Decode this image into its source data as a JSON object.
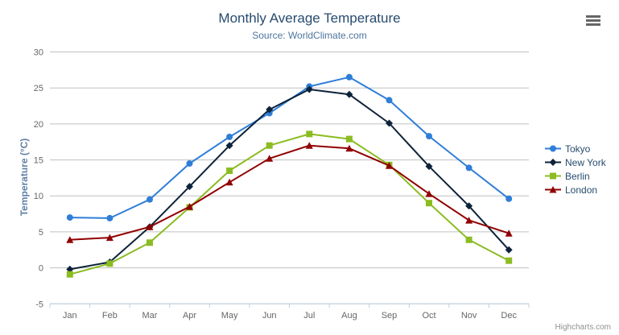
{
  "chart_data": {
    "type": "line",
    "title": "Monthly Average Temperature",
    "subtitle": "Source: WorldClimate.com",
    "categories": [
      "Jan",
      "Feb",
      "Mar",
      "Apr",
      "May",
      "Jun",
      "Jul",
      "Aug",
      "Sep",
      "Oct",
      "Nov",
      "Dec"
    ],
    "series": [
      {
        "name": "Tokyo",
        "color": "#2f7ed8",
        "marker": "circle",
        "values": [
          7.0,
          6.9,
          9.5,
          14.5,
          18.2,
          21.5,
          25.2,
          26.5,
          23.3,
          18.3,
          13.9,
          9.6
        ]
      },
      {
        "name": "New York",
        "color": "#0d233a",
        "marker": "diamond",
        "values": [
          -0.2,
          0.8,
          5.7,
          11.3,
          17.0,
          22.0,
          24.8,
          24.1,
          20.1,
          14.1,
          8.6,
          2.5
        ]
      },
      {
        "name": "Berlin",
        "color": "#8bbc21",
        "marker": "square",
        "values": [
          -0.9,
          0.6,
          3.5,
          8.4,
          13.5,
          17.0,
          18.6,
          17.9,
          14.3,
          9.0,
          3.9,
          1.0
        ]
      },
      {
        "name": "London",
        "color": "#910000",
        "marker": "triangle",
        "values": [
          3.9,
          4.2,
          5.7,
          8.5,
          11.9,
          15.2,
          17.0,
          16.6,
          14.2,
          10.3,
          6.6,
          4.8
        ]
      }
    ],
    "xlabel": "",
    "ylabel": "Temperature (°C)",
    "ylim": [
      -5,
      30
    ],
    "ytick_interval": 5,
    "grid": "horizontal",
    "legend_position": "right"
  },
  "colors": {
    "title": "#274b6d",
    "subtitle": "#4d759e",
    "y_axis_title": "#5f7fa6",
    "axis_labels": "#666666",
    "gridline": "#c0c0c0",
    "axis_line": "#c0d0e0",
    "legend_text": "#274b6d",
    "credits_text": "#909090",
    "menu_icon": "#666666"
  },
  "menu": {
    "icon": "hamburger-menu-icon"
  },
  "credits": {
    "label": "Highcharts.com"
  }
}
